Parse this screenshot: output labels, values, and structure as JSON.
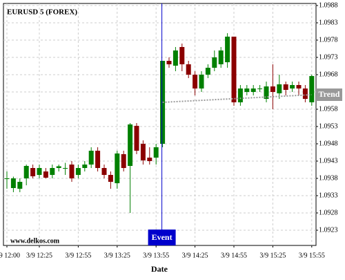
{
  "chart_data": {
    "type": "candlestick",
    "title": "EURUSD 5 (FOREX)",
    "watermark": "www.delkos.com",
    "x_label": "Date",
    "categories": [
      "3/9 12:00",
      null,
      null,
      null,
      null,
      "3/9 12:25",
      null,
      null,
      null,
      null,
      null,
      "3/9 12:55",
      null,
      null,
      null,
      null,
      null,
      "3/9 13:25",
      null,
      null,
      null,
      null,
      null,
      "3/9 13:55",
      null,
      null,
      null,
      null,
      null,
      "3/9 14:25",
      null,
      null,
      null,
      null,
      null,
      "3/9 14:55",
      null,
      null,
      null,
      null,
      null,
      "3/9 15:25",
      null,
      null,
      null,
      null,
      null,
      "3/9 15:55"
    ],
    "open": [
      1.0938,
      1.09352,
      1.0935,
      1.0938,
      1.0941,
      1.0939,
      1.094,
      1.0939,
      1.0941,
      1.0941,
      1.0942,
      1.0939,
      1.0941,
      1.0942,
      1.0946,
      1.0941,
      1.0939,
      1.09366,
      1.0945,
      1.09416,
      1.09532,
      1.0948,
      1.0944,
      1.0944,
      1.0948,
      1.0972,
      1.09706,
      1.0976,
      1.0971,
      1.0968,
      1.0964,
      1.0968,
      1.097,
      1.0971,
      1.09716,
      1.0979,
      1.096,
      1.0963,
      1.0963,
      1.0964,
      1.0961,
      1.09646,
      1.09626,
      1.09652,
      1.0964,
      1.0965,
      1.0964,
      1.096
    ],
    "high": [
      1.094,
      1.09385,
      1.0938,
      1.0942,
      1.0942,
      1.0942,
      1.0941,
      1.0942,
      1.0942,
      1.09425,
      1.0943,
      1.0942,
      1.0943,
      1.0947,
      1.0947,
      1.0942,
      1.094,
      1.0946,
      1.0946,
      1.0954,
      1.0954,
      1.0949,
      1.0947,
      1.0948,
      1.0972,
      1.0973,
      1.0976,
      1.0977,
      1.0972,
      1.0969,
      1.0969,
      1.0971,
      1.0975,
      1.0976,
      1.098,
      1.0979,
      1.0965,
      1.0965,
      1.0965,
      1.0965,
      1.0966,
      1.0971,
      1.0968,
      1.0966,
      1.0966,
      1.0966,
      1.0965,
      1.0968
    ],
    "low": [
      1.0935,
      1.0934,
      1.0934,
      1.0936,
      1.0938,
      1.0938,
      1.0938,
      1.0938,
      1.094,
      1.0939,
      1.0937,
      1.0938,
      1.094,
      1.0941,
      1.094,
      1.0938,
      1.0935,
      1.0935,
      1.094,
      1.0928,
      1.0945,
      1.0942,
      1.0942,
      1.0942,
      1.0947,
      1.097,
      1.0969,
      1.0969,
      1.0967,
      1.0962,
      1.0963,
      1.0967,
      1.0969,
      1.097,
      1.097,
      1.0959,
      1.0959,
      1.0962,
      1.0962,
      1.0963,
      1.096,
      1.0958,
      1.0961,
      1.0962,
      1.0963,
      1.0962,
      1.096,
      1.0959
    ],
    "close": [
      1.0938,
      1.0938,
      1.0937,
      1.09416,
      1.09386,
      1.0941,
      1.09382,
      1.0941,
      1.09415,
      1.0941,
      1.0938,
      1.0941,
      1.0942,
      1.0946,
      1.0941,
      1.0939,
      1.0937,
      1.09452,
      1.0941,
      1.09536,
      1.0946,
      1.09432,
      1.0943,
      1.0947,
      1.0972,
      1.0971,
      1.0975,
      1.0971,
      1.0968,
      1.0964,
      1.0968,
      1.097,
      1.0973,
      1.0975,
      1.0979,
      1.096,
      1.0964,
      1.0964,
      1.0964,
      1.0964,
      1.09646,
      1.0963,
      1.09652,
      1.09636,
      1.0965,
      1.0964,
      1.0961,
      1.09676
    ],
    "up_color": "#008000",
    "down_color": "#8b0000",
    "ylim": [
      1.09186,
      1.09886
    ],
    "yticks": [
      1.0923,
      1.0928,
      1.0933,
      1.0938,
      1.0943,
      1.0948,
      1.0953,
      1.0958,
      1.0963,
      1.0968,
      1.0973,
      1.0978,
      1.0983,
      1.0988
    ],
    "grid": true,
    "event": {
      "label": "Event",
      "x": 24,
      "color": "#0000cc"
    },
    "trend": {
      "label": "Trend",
      "x": [
        24,
        47
      ],
      "values": [
        1.096,
        1.09622
      ],
      "color": "#999999"
    }
  }
}
